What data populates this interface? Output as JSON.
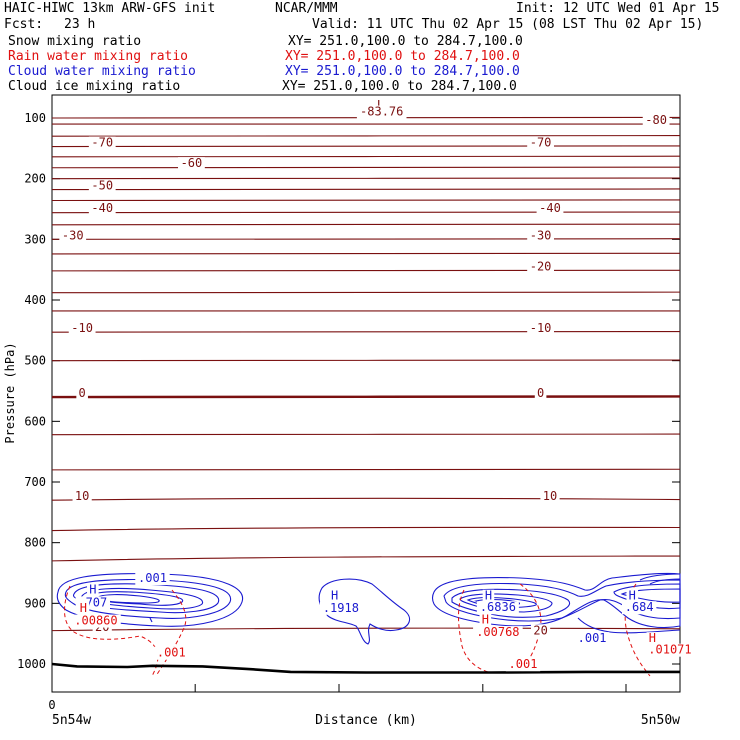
{
  "header": {
    "title": "HAIC-HIWC 13km ARW-GFS init",
    "org": "NCAR/MMM",
    "init": "Init: 12 UTC Wed 01 Apr 15",
    "fcst_label": "Fcst:",
    "fcst_value": "23 h",
    "valid": "Valid: 11 UTC Thu 02 Apr 15 (08 LST Thu 02 Apr 15)"
  },
  "fields": [
    {
      "name": "Snow mixing ratio",
      "xy": "XY= 251.0,100.0 to 284.7,100.0",
      "color": "#000000"
    },
    {
      "name": "Rain water mixing ratio",
      "xy": "XY= 251.0,100.0 to 284.7,100.0",
      "color": "#e01010"
    },
    {
      "name": "Cloud water mixing ratio",
      "xy": "XY= 251.0,100.0 to 284.7,100.0",
      "color": "#1a1ad0"
    },
    {
      "name": "Cloud ice mixing ratio",
      "xy": "XY= 251.0,100.0 to 284.7,100.0",
      "color": "#000000"
    }
  ],
  "colors": {
    "temperature": "#7a1010",
    "cloud_water": "#1a1ad0",
    "rain_water": "#e01010",
    "terrain": "#000000"
  },
  "chart_data": {
    "type": "contour",
    "ylabel": "Pressure (hPa)",
    "xlabel": "Distance (km)",
    "ylim": [
      1050,
      50
    ],
    "yticks": [
      100,
      200,
      300,
      400,
      500,
      600,
      700,
      800,
      900,
      1000
    ],
    "xlim": [
      0,
      1
    ],
    "xtick_label": "0",
    "x_left_label": "5n54w",
    "x_right_label": "5n50w",
    "isotherms": [
      {
        "p": 100,
        "left": 100,
        "right": 99,
        "label": "-83.76"
      },
      {
        "p": 110,
        "left": 110,
        "right": 110,
        "label": "-80"
      },
      {
        "p": 130,
        "left": 130,
        "right": 129
      },
      {
        "p": 147,
        "left": 147,
        "right": 146,
        "label": "-70"
      },
      {
        "p": 164,
        "left": 164,
        "right": 163
      },
      {
        "p": 182,
        "left": 182,
        "right": 181,
        "label": "-60"
      },
      {
        "p": 200,
        "left": 200,
        "right": 199
      },
      {
        "p": 218,
        "left": 218,
        "right": 217,
        "label": "-50"
      },
      {
        "p": 236,
        "left": 236,
        "right": 235
      },
      {
        "p": 256,
        "left": 256,
        "right": 255,
        "label": "-40"
      },
      {
        "p": 276,
        "left": 276,
        "right": 275
      },
      {
        "p": 300,
        "left": 300,
        "right": 299,
        "label": "-30"
      },
      {
        "p": 324,
        "left": 324,
        "right": 323
      },
      {
        "p": 352,
        "left": 352,
        "right": 351,
        "label": "-20"
      },
      {
        "p": 388,
        "left": 388,
        "right": 387
      },
      {
        "p": 418,
        "left": 418,
        "right": 418
      },
      {
        "p": 453,
        "left": 453,
        "right": 452,
        "label": "-10"
      },
      {
        "p": 500,
        "left": 500,
        "right": 499
      },
      {
        "p": 560,
        "left": 560,
        "right": 559,
        "label": "0",
        "bold": true
      },
      {
        "p": 622,
        "left": 622,
        "right": 621
      },
      {
        "p": 680,
        "left": 680,
        "right": 679
      },
      {
        "p": 730,
        "left": 730,
        "right": 729,
        "label": "10"
      },
      {
        "p": 780,
        "left": 780,
        "right": 775
      },
      {
        "p": 830,
        "left": 830,
        "right": 822
      },
      {
        "p": 945,
        "left": 945,
        "right": 942,
        "label": "20"
      }
    ],
    "annotations": [
      {
        "text": "L",
        "x": 0.523,
        "p": 85,
        "color": "temperature"
      },
      {
        "text": "-83.76",
        "x": 0.525,
        "p": 96,
        "color": "temperature"
      },
      {
        "text": "-80",
        "x": 0.962,
        "p": 110,
        "color": "temperature"
      },
      {
        "text": "-70",
        "x": 0.08,
        "p": 147,
        "color": "temperature"
      },
      {
        "text": "-70",
        "x": 0.778,
        "p": 147,
        "color": "temperature"
      },
      {
        "text": "-60",
        "x": 0.222,
        "p": 181,
        "color": "temperature"
      },
      {
        "text": "-50",
        "x": 0.08,
        "p": 218,
        "color": "temperature"
      },
      {
        "text": "-40",
        "x": 0.08,
        "p": 255,
        "color": "temperature"
      },
      {
        "text": "-40",
        "x": 0.793,
        "p": 255,
        "color": "temperature"
      },
      {
        "text": "-30",
        "x": 0.033,
        "p": 300,
        "color": "temperature"
      },
      {
        "text": "-30",
        "x": 0.778,
        "p": 300,
        "color": "temperature"
      },
      {
        "text": "-20",
        "x": 0.778,
        "p": 351,
        "color": "temperature"
      },
      {
        "text": "-10",
        "x": 0.048,
        "p": 453,
        "color": "temperature"
      },
      {
        "text": "-10",
        "x": 0.778,
        "p": 453,
        "color": "temperature"
      },
      {
        "text": "0",
        "x": 0.048,
        "p": 560,
        "color": "temperature"
      },
      {
        "text": "0",
        "x": 0.778,
        "p": 560,
        "color": "temperature"
      },
      {
        "text": "10",
        "x": 0.048,
        "p": 730,
        "color": "temperature"
      },
      {
        "text": "10",
        "x": 0.793,
        "p": 730,
        "color": "temperature"
      },
      {
        "text": "20",
        "x": 0.08,
        "p": 946,
        "color": "temperature"
      },
      {
        "text": "20",
        "x": 0.778,
        "p": 951,
        "color": "temperature"
      },
      {
        "text": "H",
        "x": 0.065,
        "p": 884,
        "color": "cloud_water"
      },
      {
        "text": ".707",
        "x": 0.065,
        "p": 905,
        "color": "cloud_water"
      },
      {
        "text": ".001",
        "x": 0.16,
        "p": 865,
        "color": "cloud_water"
      },
      {
        "text": "H",
        "x": 0.45,
        "p": 894,
        "color": "cloud_water"
      },
      {
        "text": ".1918",
        "x": 0.46,
        "p": 914,
        "color": "cloud_water"
      },
      {
        "text": "H",
        "x": 0.695,
        "p": 894,
        "color": "cloud_water"
      },
      {
        "text": ".6836",
        "x": 0.71,
        "p": 913,
        "color": "cloud_water"
      },
      {
        "text": "H",
        "x": 0.924,
        "p": 894,
        "color": "cloud_water"
      },
      {
        "text": ".684",
        "x": 0.935,
        "p": 913,
        "color": "cloud_water"
      },
      {
        "text": ".001",
        "x": 0.86,
        "p": 964,
        "color": "cloud_water"
      },
      {
        "text": "H",
        "x": 0.05,
        "p": 914,
        "color": "rain_water"
      },
      {
        "text": ".00860",
        "x": 0.07,
        "p": 935,
        "color": "rain_water"
      },
      {
        "text": ".001",
        "x": 0.19,
        "p": 988,
        "color": "rain_water"
      },
      {
        "text": "H",
        "x": 0.69,
        "p": 933,
        "color": "rain_water"
      },
      {
        "text": ".00768",
        "x": 0.71,
        "p": 954,
        "color": "rain_water"
      },
      {
        "text": ".001",
        "x": 0.75,
        "p": 1007,
        "color": "rain_water"
      },
      {
        "text": "H",
        "x": 0.956,
        "p": 964,
        "color": "rain_water"
      },
      {
        "text": ".01071",
        "x": 0.984,
        "p": 983,
        "color": "rain_water"
      }
    ],
    "terrain": [
      {
        "x": 0.0,
        "p": 1000
      },
      {
        "x": 0.04,
        "p": 1004
      },
      {
        "x": 0.12,
        "p": 1005
      },
      {
        "x": 0.16,
        "p": 1003
      },
      {
        "x": 0.24,
        "p": 1004
      },
      {
        "x": 0.31,
        "p": 1008
      },
      {
        "x": 0.38,
        "p": 1013
      },
      {
        "x": 0.5,
        "p": 1014
      },
      {
        "x": 0.7,
        "p": 1014
      },
      {
        "x": 0.85,
        "p": 1013
      },
      {
        "x": 1.0,
        "p": 1013
      }
    ]
  }
}
